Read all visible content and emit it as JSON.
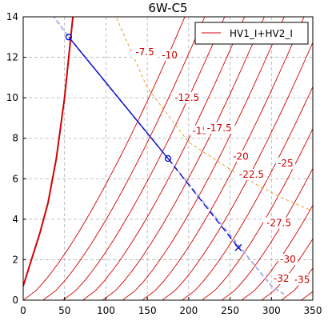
{
  "chart_data": {
    "type": "line",
    "title": "6W-C5",
    "xlim": [
      0,
      350
    ],
    "ylim": [
      0,
      14
    ],
    "x_ticks": [
      0,
      50,
      100,
      150,
      200,
      250,
      300,
      350
    ],
    "y_ticks": [
      0,
      2,
      4,
      6,
      8,
      10,
      12,
      14
    ],
    "grid": true,
    "legend": {
      "position": "top-right",
      "entries": [
        "HV1_I+HV2_I"
      ]
    },
    "series": [
      {
        "name": "HV1_I+HV2_I",
        "color": "#d40000",
        "boundary": [
          [
            0,
            0.7
          ],
          [
            10,
            2.0
          ],
          [
            20,
            3.3
          ],
          [
            30,
            4.8
          ],
          [
            40,
            7.0
          ],
          [
            50,
            10.0
          ],
          [
            60,
            14.0
          ]
        ],
        "families": [
          {
            "x0": 0,
            "dx": 24,
            "count": 15,
            "ymax": 14
          }
        ]
      }
    ],
    "contour_labels": [
      {
        "text": "-7.5",
        "x": 147,
        "y": 12.1
      },
      {
        "text": "-10",
        "x": 177,
        "y": 11.95
      },
      {
        "text": "-12.5",
        "x": 198,
        "y": 9.85
      },
      {
        "text": "-15",
        "x": 214,
        "y": 8.2
      },
      {
        "text": "-17.5",
        "x": 237,
        "y": 8.35
      },
      {
        "text": "-20",
        "x": 263,
        "y": 6.95
      },
      {
        "text": "-22.5",
        "x": 276,
        "y": 6.05
      },
      {
        "text": "-25",
        "x": 317,
        "y": 6.6
      },
      {
        "text": "-27.5",
        "x": 309,
        "y": 3.65
      },
      {
        "text": "-30",
        "x": 320,
        "y": 1.85
      },
      {
        "text": "-32",
        "x": 312,
        "y": 0.9
      },
      {
        "text": "-35",
        "x": 337,
        "y": 0.85
      }
    ],
    "operating_line": {
      "points": [
        [
          55,
          13.0
        ],
        [
          175,
          7.0
        ]
      ],
      "color": "#0000cc"
    },
    "operating_dashed": {
      "points": [
        [
          175,
          7.0
        ],
        [
          260,
          2.6
        ]
      ],
      "color": "#0000cc"
    },
    "operating_faint": {
      "points": [
        [
          30,
          14.4
        ],
        [
          55,
          13.0
        ],
        [
          175,
          7.0
        ],
        [
          300,
          0.7
        ],
        [
          315,
          0.3
        ]
      ],
      "color": "#aab0ee"
    },
    "markers": [
      {
        "x": 55,
        "y": 13.0,
        "shape": "circle",
        "color": "#0000cc"
      },
      {
        "x": 175,
        "y": 7.0,
        "shape": "circle",
        "color": "#0000cc"
      },
      {
        "x": 260,
        "y": 2.6,
        "shape": "cross",
        "color": "#0000cc"
      }
    ],
    "orange_dashed": {
      "points": [
        [
          110,
          14.2
        ],
        [
          150,
          10.5
        ],
        [
          200,
          7.8
        ],
        [
          260,
          6.2
        ],
        [
          310,
          5.1
        ],
        [
          350,
          4.4
        ]
      ],
      "color": "#e8a33a"
    }
  }
}
